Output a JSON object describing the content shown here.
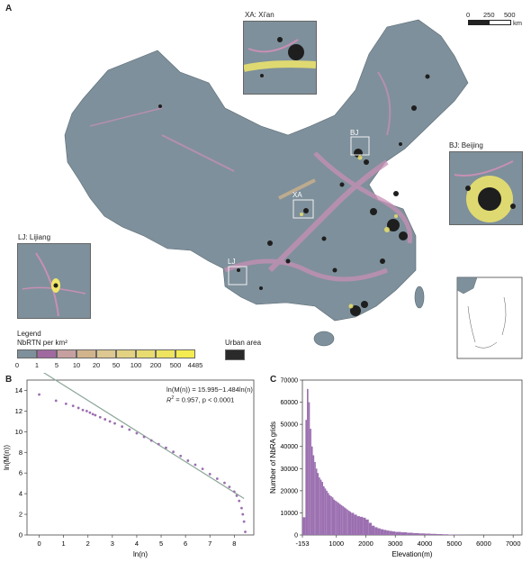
{
  "panel_a": {
    "letter": "A",
    "insets": {
      "xa": "XA: Xi'an",
      "bj": "BJ: Beijing",
      "lj": "LJ: Lijiang"
    },
    "box_labels": {
      "bj": "BJ",
      "xa": "XA",
      "lj": "LJ"
    },
    "scale": {
      "t0": "0",
      "t1": "250",
      "t2": "500",
      "unit": "km"
    },
    "legend": {
      "title": "Legend",
      "subtitle": "NbRTN per km²",
      "ticks": [
        "0",
        "1",
        "5",
        "10",
        "20",
        "50",
        "100",
        "200",
        "500",
        "4485"
      ],
      "colors": [
        "#7e909b",
        "#a06aa0",
        "#c6a0a0",
        "#d2b48c",
        "#dcc890",
        "#e2d282",
        "#e8dc70",
        "#eee460",
        "#f4ec50",
        "#f8f248"
      ],
      "urban_label": "Urban area",
      "urban_color": "#2a2a2a"
    },
    "colors": {
      "base": "#7e909b",
      "roads": "#c88fb5",
      "urban": "#1e1e1e",
      "yellow": "#f0e66a"
    }
  },
  "panel_b": {
    "letter": "B",
    "equation": "ln(M(n)) = 15.995−1.484ln(n)",
    "r2_label": "= 0.957, p < 0.0001",
    "xlabel": "ln(n)",
    "ylabel": "ln(M(n))"
  },
  "panel_c": {
    "letter": "C",
    "xlabel": "Elevation(m)",
    "ylabel": "Number of NbRA grids"
  },
  "chart_data": [
    {
      "type": "scatter",
      "xlabel": "ln(n)",
      "ylabel": "ln(M(n))",
      "xlim": [
        -0.5,
        8.8
      ],
      "ylim": [
        0,
        15
      ],
      "xticks": [
        0,
        1,
        2,
        3,
        4,
        5,
        6,
        7,
        8
      ],
      "yticks": [
        0,
        2,
        4,
        6,
        8,
        10,
        12,
        14
      ],
      "points_x": [
        0,
        0.69,
        1.1,
        1.39,
        1.61,
        1.79,
        1.95,
        2.08,
        2.2,
        2.3,
        2.5,
        2.7,
        2.9,
        3.1,
        3.4,
        3.7,
        4.0,
        4.3,
        4.6,
        4.9,
        5.2,
        5.5,
        5.8,
        6.1,
        6.4,
        6.7,
        7.0,
        7.3,
        7.6,
        7.8,
        8.0,
        8.1,
        8.2,
        8.3,
        8.35,
        8.4,
        8.45
      ],
      "points_y": [
        13.6,
        13.0,
        12.7,
        12.5,
        12.3,
        12.1,
        12.0,
        11.85,
        11.7,
        11.6,
        11.4,
        11.2,
        11.0,
        10.8,
        10.5,
        10.2,
        9.85,
        9.5,
        9.15,
        8.8,
        8.45,
        8.05,
        7.65,
        7.2,
        6.8,
        6.4,
        5.9,
        5.45,
        5.05,
        4.65,
        4.2,
        3.8,
        3.3,
        2.6,
        2.0,
        1.3,
        0.3
      ],
      "fit": {
        "intercept": 15.995,
        "slope": -1.484,
        "x_range": [
          0,
          8.4
        ]
      },
      "point_color": "#9b6fb0",
      "fit_color": "#8ea89a"
    },
    {
      "type": "bar",
      "xlabel": "Elevation(m)",
      "ylabel": "Number of NbRA grids",
      "xlim": [
        -153,
        7300
      ],
      "ylim": [
        0,
        70000
      ],
      "xticks": [
        -153,
        1000,
        2000,
        3000,
        4000,
        5000,
        6000,
        7000
      ],
      "yticks": [
        0,
        10000,
        20000,
        30000,
        40000,
        50000,
        60000,
        70000
      ],
      "bin_starts": [
        -153,
        -50,
        0,
        50,
        100,
        150,
        200,
        250,
        300,
        350,
        400,
        450,
        500,
        550,
        600,
        650,
        700,
        750,
        800,
        850,
        900,
        950,
        1000,
        1050,
        1100,
        1150,
        1200,
        1250,
        1300,
        1350,
        1400,
        1450,
        1500,
        1600,
        1700,
        1800,
        1900,
        2000,
        2100,
        2200,
        2300,
        2400,
        2500,
        2600,
        2700,
        2800,
        2900,
        3000,
        3200,
        3400,
        3600,
        3800,
        4000,
        4200,
        4400,
        4600,
        4800,
        5000,
        5200
      ],
      "values": [
        8000,
        52000,
        66000,
        60000,
        48000,
        40000,
        36000,
        33000,
        30000,
        28000,
        26000,
        25000,
        24000,
        22000,
        21000,
        20000,
        19000,
        18000,
        17500,
        17000,
        16000,
        15500,
        15000,
        14500,
        14000,
        13500,
        13000,
        12500,
        12000,
        11500,
        11000,
        10500,
        10000,
        9200,
        8500,
        8200,
        7800,
        7000,
        5500,
        4200,
        3500,
        3000,
        2600,
        2300,
        2000,
        1800,
        1600,
        1400,
        1200,
        1000,
        850,
        700,
        600,
        500,
        400,
        300,
        200,
        120,
        50
      ],
      "bar_color": "#9b6fb0"
    }
  ]
}
